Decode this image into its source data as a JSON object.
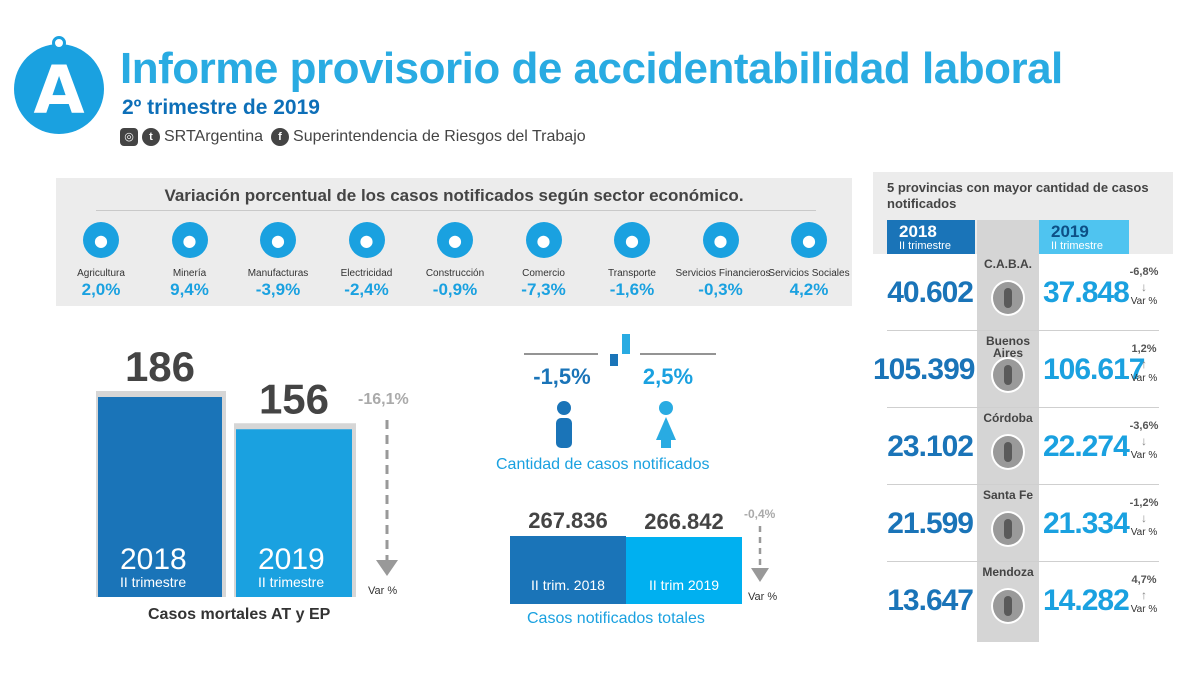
{
  "header": {
    "logo_letter": "A",
    "title": "Informe provisorio de accidentabilidad laboral",
    "subtitle": "2º trimestre de 2019",
    "social": {
      "instagram_icon": "instagram-icon",
      "twitter_icon": "twitter-icon",
      "twitter_handle": "SRTArgentina",
      "facebook_icon": "facebook-icon",
      "facebook_name": "Superintendencia de Riesgos del Trabajo"
    }
  },
  "colors": {
    "dark_blue": "#1a74b8",
    "light_blue": "#1aa1e0",
    "cyan": "#00b0f0",
    "gray_panel": "#ececec"
  },
  "chart_data": [
    {
      "type": "table",
      "title": "Variación porcentual de los casos notificados según sector económico.",
      "categories": [
        "Agricultura",
        "Minería",
        "Manufacturas",
        "Electricidad",
        "Construcción",
        "Comercio",
        "Transporte",
        "Servicios Financieros",
        "Servicios Sociales"
      ],
      "values": [
        2.0,
        9.4,
        -3.9,
        -2.4,
        -0.9,
        -7.3,
        -1.6,
        -0.3,
        4.2
      ],
      "labels": [
        "2,0%",
        "9,4%",
        "-3,9%",
        "-2,4%",
        "-0,9%",
        "-7,3%",
        "-1,6%",
        "-0,3%",
        "4,2%"
      ],
      "icons": [
        "tractor-icon",
        "oil-pump-icon",
        "factory-icon",
        "lightning-icon",
        "wheelbarrow-icon",
        "cart-icon",
        "bus-icon",
        "bank-icon",
        "cleaning-icon"
      ]
    },
    {
      "type": "bar",
      "title": "Casos mortales AT y EP",
      "categories": [
        "2018",
        "2019"
      ],
      "category_sublabels": [
        "II trimestre",
        "II trimestre"
      ],
      "values": [
        186,
        156
      ],
      "value_labels": [
        "186",
        "156"
      ],
      "variation": "-16,1%",
      "variation_label": "Var %",
      "ylim": [
        0,
        200
      ]
    },
    {
      "type": "bar",
      "title": "Cantidad de casos notificados",
      "categories": [
        "hombres",
        "mujeres"
      ],
      "values": [
        -1.5,
        2.5
      ],
      "labels": [
        "-1,5%",
        "2,5%"
      ],
      "icons": [
        "man-icon",
        "woman-icon"
      ]
    },
    {
      "type": "bar",
      "title": "Casos notificados totales",
      "categories": [
        "II trim. 2018",
        "II trim 2019"
      ],
      "values": [
        267836,
        266842
      ],
      "value_labels": [
        "267.836",
        "266.842"
      ],
      "variation": "-0,4%",
      "variation_label": "Var %"
    },
    {
      "type": "table",
      "title": "5 provincias con mayor cantidad de casos notificados",
      "headers": {
        "left_year": "2018",
        "left_sub": "II trimestre",
        "right_year": "2019",
        "right_sub": "II trimestre"
      },
      "rows": [
        {
          "name": "C.A.B.A.",
          "v2018": "40.602",
          "v2019": "37.848",
          "var": "-6,8%",
          "dir": "down",
          "var_label": "Var %"
        },
        {
          "name": "Buenos Aires",
          "v2018": "105.399",
          "v2019": "106.617",
          "var": "1,2%",
          "dir": "up",
          "var_label": "Var %"
        },
        {
          "name": "Córdoba",
          "v2018": "23.102",
          "v2019": "22.274",
          "var": "-3,6%",
          "dir": "down",
          "var_label": "Var %"
        },
        {
          "name": "Santa Fe",
          "v2018": "21.599",
          "v2019": "21.334",
          "var": "-1,2%",
          "dir": "down",
          "var_label": "Var %"
        },
        {
          "name": "Mendoza",
          "v2018": "13.647",
          "v2019": "14.282",
          "var": "4,7%",
          "dir": "up",
          "var_label": "Var %"
        }
      ]
    }
  ]
}
